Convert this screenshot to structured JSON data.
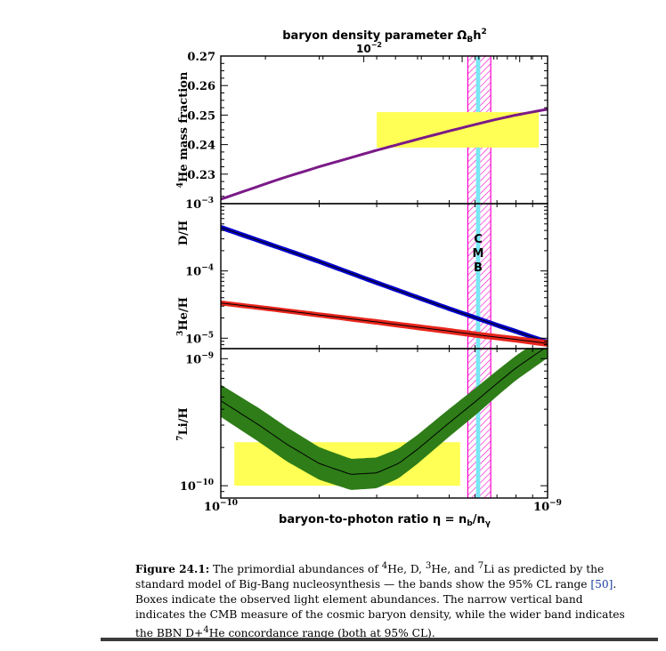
{
  "chart_data": {
    "type": "line",
    "top_axis_title": "baryon density parameter Ω",
    "top_axis_sub": "B",
    "top_axis_tail": "h",
    "top_axis_sup": "2",
    "top_axis_multiplier": "10",
    "top_axis_multiplier_exp": "−2",
    "bottom_axis_title": "baryon-to-photon ratio η = n",
    "bottom_axis_sub1": "b",
    "bottom_axis_mid": "/n",
    "bottom_axis_sub2": "γ",
    "x_axis": {
      "scale": "log",
      "range": [
        1e-10,
        1e-09
      ],
      "tick_labels": [
        {
          "base": "10",
          "exp": "−10"
        },
        {
          "base": "10",
          "exp": "−9"
        }
      ]
    },
    "panels": [
      {
        "id": "he4",
        "ylabel_sup": "4",
        "ylabel": "He mass fraction",
        "y_scale": "linear",
        "y_range": [
          0.22,
          0.27
        ],
        "tick_labels": [
          "0.27",
          "0.26",
          "0.25",
          "0.24",
          "0.23"
        ],
        "tick_values": [
          0.27,
          0.26,
          0.25,
          0.24,
          0.23
        ],
        "series": [
          {
            "color": "#7b1a88",
            "x": [
              1e-10,
              1.5e-10,
              2e-10,
              3e-10,
              4e-10,
              5e-10,
              6e-10,
              7e-10,
              8e-10,
              1e-09
            ],
            "y": [
              0.2215,
              0.2282,
              0.2325,
              0.2381,
              0.2418,
              0.2446,
              0.2468,
              0.2486,
              0.25,
              0.252
            ]
          }
        ],
        "observed_box": {
          "x": [
            3e-10,
            9.4e-10
          ],
          "y": [
            0.239,
            0.251
          ],
          "color": "#ffff55"
        }
      },
      {
        "id": "d_he3",
        "ylabel_top": "D/H",
        "ylabel_bottom_sup": "3",
        "ylabel_bottom": "He/H",
        "y_scale": "log",
        "y_range": [
          7e-06,
          0.001
        ],
        "tick_labels": [
          {
            "base": "10",
            "exp": "−3"
          },
          {
            "base": "10",
            "exp": "−4"
          },
          {
            "base": "10",
            "exp": "−5"
          }
        ],
        "tick_values": [
          0.001,
          0.0001,
          1e-05
        ],
        "series": [
          {
            "name": "D/H",
            "color": "#0000cc",
            "x": [
              1e-10,
              1.5e-10,
              2e-10,
              3e-10,
              4e-10,
              5e-10,
              6e-10,
              7e-10,
              8e-10,
              1e-09
            ],
            "y_low": [
              0.00041,
              0.000208,
              0.000128,
              6.2e-05,
              3.75e-05,
              2.55e-05,
              1.88e-05,
              1.45e-05,
              1.17e-05,
              8.1e-06
            ],
            "y_high": [
              0.00048,
              0.000242,
              0.000149,
              7.2e-05,
              4.35e-05,
              2.95e-05,
              2.18e-05,
              1.68e-05,
              1.36e-05,
              9.4e-06
            ]
          },
          {
            "name": "3He/H",
            "color": "#e8251c",
            "x": [
              1e-10,
              1.5e-10,
              2e-10,
              3e-10,
              4e-10,
              5e-10,
              6e-10,
              7e-10,
              8e-10,
              1e-09
            ],
            "y_low": [
              3.1e-05,
              2.45e-05,
              2.05e-05,
              1.6e-05,
              1.33e-05,
              1.16e-05,
              1.03e-05,
              9.4e-06,
              8.7e-06,
              7.5e-06
            ],
            "y_high": [
              3.6e-05,
              2.85e-05,
              2.4e-05,
              1.9e-05,
              1.6e-05,
              1.4e-05,
              1.25e-05,
              1.14e-05,
              1.06e-05,
              9.3e-06
            ]
          }
        ]
      },
      {
        "id": "li7",
        "ylabel_sup": "7",
        "ylabel": "Li/H",
        "y_scale": "log",
        "y_range": [
          8e-11,
          1.2e-09
        ],
        "tick_labels": [
          {
            "base": "10",
            "exp": "−9"
          },
          {
            "base": "10",
            "exp": "−10"
          }
        ],
        "tick_values": [
          1e-09,
          1e-10
        ],
        "series": [
          {
            "color": "#2e7d18",
            "x": [
              1e-10,
              1.3e-10,
              1.6e-10,
              2e-10,
              2.5e-10,
              3e-10,
              3.5e-10,
              4e-10,
              5e-10,
              6e-10,
              7e-10,
              8e-10,
              1e-09
            ],
            "y_low": [
              3.5e-10,
              2.25e-10,
              1.55e-10,
              1.12e-10,
              9.3e-11,
              9.6e-11,
              1.15e-10,
              1.5e-10,
              2.45e-10,
              3.6e-10,
              5.1e-10,
              6.8e-10,
              1.02e-09
            ],
            "y_high": [
              6.2e-10,
              4.1e-10,
              2.85e-10,
              2e-10,
              1.62e-10,
              1.66e-10,
              1.95e-10,
              2.5e-10,
              4e-10,
              5.8e-10,
              8e-10,
              1.05e-09,
              1.55e-09
            ]
          }
        ],
        "observed_box": {
          "x": [
            1.1e-10,
            5.4e-10
          ],
          "y": [
            1e-10,
            2.2e-10
          ],
          "color": "#ffff55"
        }
      }
    ],
    "bands": {
      "cmb": {
        "x": [
          6.04e-10,
          6.22e-10
        ],
        "color": "#78e8f5",
        "label_letters": [
          "C",
          "M",
          "B"
        ]
      },
      "concordance": {
        "x": [
          5.7e-10,
          6.7e-10
        ],
        "color": "#ff00cc"
      }
    }
  },
  "caption": {
    "fig_label": "Figure 24.1:",
    "t1": " The primordial abundances of ",
    "s1": "4",
    "t2": "He, D, ",
    "s2": "3",
    "t3": "He, and ",
    "s3": "7",
    "t4": "Li as predicted by the standard model of Big-Bang nucleosynthesis — the bands show the 95% CL range ",
    "ref": "[50]",
    "t5": ". Boxes indicate the observed light element abundances. The narrow vertical band indicates the CMB measure of the cosmic baryon density, while the wider band indicates the BBN D+",
    "s4": "4",
    "t6": "He concordance range (both at 95% CL)."
  }
}
